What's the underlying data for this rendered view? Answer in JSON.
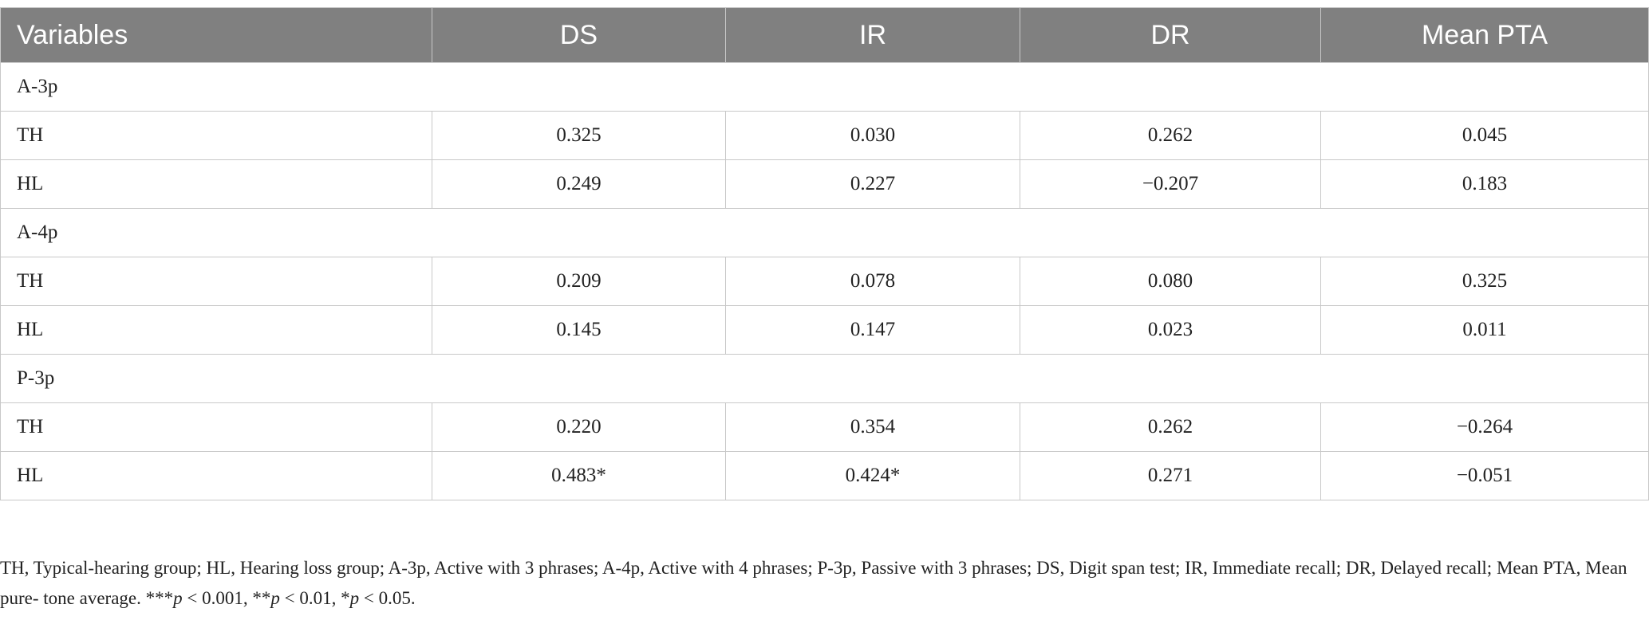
{
  "table": {
    "headers": [
      "Variables",
      "DS",
      "IR",
      "DR",
      "Mean PTA"
    ],
    "groups": [
      {
        "label": "A-3p",
        "rows": [
          {
            "label": "TH",
            "values": [
              "0.325",
              "0.030",
              "0.262",
              "0.045"
            ]
          },
          {
            "label": "HL",
            "values": [
              "0.249",
              "0.227",
              "−0.207",
              "0.183"
            ]
          }
        ]
      },
      {
        "label": "A-4p",
        "rows": [
          {
            "label": "TH",
            "values": [
              "0.209",
              "0.078",
              "0.080",
              "0.325"
            ]
          },
          {
            "label": "HL",
            "values": [
              "0.145",
              "0.147",
              "0.023",
              "0.011"
            ]
          }
        ]
      },
      {
        "label": "P-3p",
        "rows": [
          {
            "label": "TH",
            "values": [
              "0.220",
              "0.354",
              "0.262",
              "−0.264"
            ]
          },
          {
            "label": "HL",
            "values": [
              "0.483*",
              "0.424*",
              "0.271",
              "−0.051"
            ]
          }
        ]
      }
    ]
  },
  "footnote": {
    "text": "TH, Typical-hearing group; HL, Hearing loss group; A-3p, Active with 3 phrases; A-4p, Active with 4 phrases; P-3p, Passive with 3 phrases; DS, Digit span test; IR, Immediate recall; DR, Delayed recall; Mean PTA, Mean pure- tone average. ***",
    "p1": "p",
    "t1": " < 0.001, **",
    "p2": "p",
    "t2": " < 0.01, *",
    "p3": "p",
    "t3": " < 0.05."
  }
}
